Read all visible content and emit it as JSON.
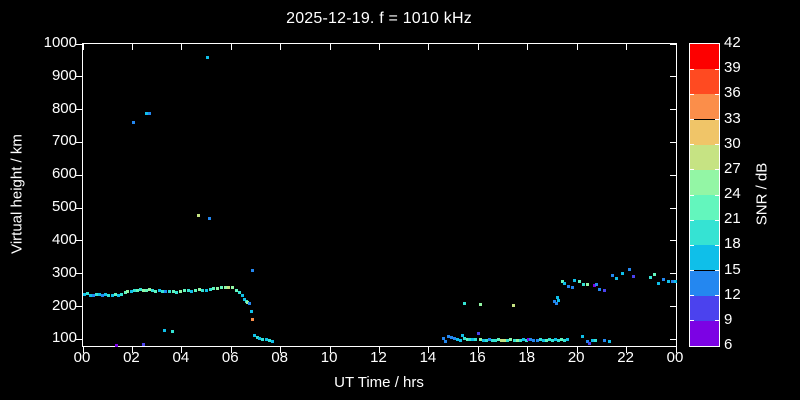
{
  "title": "2025-12-19. f = 1010 kHz",
  "axes": {
    "x": {
      "label": "UT Time / hrs",
      "min": 0,
      "max": 24,
      "tick_step_hours": 2,
      "tick_labels": [
        "00",
        "02",
        "04",
        "06",
        "08",
        "10",
        "12",
        "14",
        "16",
        "18",
        "20",
        "22",
        "00"
      ]
    },
    "y": {
      "label": "Virtual height / km",
      "min": 80,
      "max": 1000,
      "tick_values": [
        100,
        200,
        300,
        400,
        500,
        600,
        700,
        800,
        900,
        1000
      ]
    }
  },
  "colorbar": {
    "label": "SNR / dB",
    "tick_values": [
      6,
      9,
      12,
      15,
      18,
      21,
      24,
      27,
      30,
      33,
      36,
      39,
      42
    ],
    "segment_colors_bottom_to_top": [
      "#7c02e4",
      "#4b42ee",
      "#2487f0",
      "#0fbfe9",
      "#35e3d3",
      "#63f6bd",
      "#93f6a5",
      "#c6e383",
      "#f0c568",
      "#fb8e4a",
      "#ff4a21",
      "#fd0000"
    ]
  },
  "chart_data": {
    "type": "scatter",
    "title": "2025-12-19. f = 1010 kHz",
    "xlabel": "UT Time / hrs",
    "ylabel": "Virtual height / km",
    "xlim": [
      0,
      24
    ],
    "ylim": [
      80,
      1000
    ],
    "grid": false,
    "colorbar_label": "SNR / dB",
    "colorbar_range_db": [
      6,
      42
    ],
    "colorbar_step_db": 3,
    "points_format": [
      "ut_hours",
      "virtual_height_km",
      "snr_db"
    ],
    "points": [
      [
        0.05,
        237,
        16
      ],
      [
        0.18,
        240,
        19
      ],
      [
        0.3,
        235,
        16
      ],
      [
        0.42,
        233,
        13
      ],
      [
        0.55,
        238,
        19
      ],
      [
        0.68,
        236,
        16
      ],
      [
        0.8,
        234,
        13
      ],
      [
        0.92,
        237,
        16
      ],
      [
        1.05,
        235,
        19
      ],
      [
        1.18,
        233,
        16
      ],
      [
        1.3,
        236,
        22
      ],
      [
        1.42,
        234,
        16
      ],
      [
        1.55,
        237,
        19
      ],
      [
        1.7,
        242,
        22
      ],
      [
        1.82,
        245,
        25
      ],
      [
        1.95,
        247,
        16
      ],
      [
        2.08,
        248,
        19
      ],
      [
        2.2,
        250,
        22
      ],
      [
        2.32,
        252,
        19
      ],
      [
        2.45,
        250,
        25
      ],
      [
        2.58,
        248,
        22
      ],
      [
        2.7,
        251,
        25
      ],
      [
        2.82,
        249,
        19
      ],
      [
        2.95,
        247,
        22
      ],
      [
        3.08,
        248,
        16
      ],
      [
        3.2,
        246,
        19
      ],
      [
        3.35,
        247,
        13
      ],
      [
        3.5,
        245,
        19
      ],
      [
        3.65,
        246,
        22
      ],
      [
        3.8,
        244,
        19
      ],
      [
        3.95,
        246,
        25
      ],
      [
        4.1,
        248,
        22
      ],
      [
        4.25,
        250,
        19
      ],
      [
        4.4,
        247,
        16
      ],
      [
        4.55,
        249,
        22
      ],
      [
        4.7,
        251,
        25
      ],
      [
        4.85,
        248,
        19
      ],
      [
        5.0,
        250,
        16
      ],
      [
        5.15,
        252,
        19
      ],
      [
        5.3,
        254,
        22
      ],
      [
        5.45,
        256,
        25
      ],
      [
        5.6,
        257,
        22
      ],
      [
        5.75,
        258,
        25
      ],
      [
        5.9,
        259,
        28
      ],
      [
        6.05,
        257,
        25
      ],
      [
        6.2,
        250,
        22
      ],
      [
        6.35,
        242,
        19
      ],
      [
        6.45,
        234,
        16
      ],
      [
        6.55,
        223,
        16
      ],
      [
        6.6,
        216,
        19
      ],
      [
        6.65,
        211,
        25
      ],
      [
        6.72,
        208,
        13
      ],
      [
        6.8,
        185,
        16
      ],
      [
        6.88,
        162,
        34
      ],
      [
        6.95,
        111,
        16
      ],
      [
        7.05,
        107,
        19
      ],
      [
        7.15,
        104,
        16
      ],
      [
        7.28,
        101,
        19
      ],
      [
        7.42,
        100,
        16
      ],
      [
        7.55,
        97,
        19
      ],
      [
        7.68,
        94,
        16
      ],
      [
        1.37,
        81,
        7
      ],
      [
        2.45,
        85,
        10
      ],
      [
        3.28,
        128,
        16
      ],
      [
        3.62,
        125,
        19
      ],
      [
        2.06,
        760,
        13
      ],
      [
        2.55,
        787,
        16
      ],
      [
        2.7,
        787,
        13
      ],
      [
        5.05,
        958,
        16
      ],
      [
        4.67,
        477,
        28
      ],
      [
        5.13,
        467,
        13
      ],
      [
        6.85,
        309,
        13
      ],
      [
        14.58,
        104,
        13
      ],
      [
        14.68,
        94,
        13
      ],
      [
        14.8,
        108,
        13
      ],
      [
        14.92,
        106,
        13
      ],
      [
        15.04,
        104,
        13
      ],
      [
        15.16,
        101,
        16
      ],
      [
        15.28,
        98,
        16
      ],
      [
        15.35,
        111,
        16
      ],
      [
        15.45,
        103,
        19
      ],
      [
        15.55,
        100,
        22
      ],
      [
        15.65,
        99,
        19
      ],
      [
        15.78,
        100,
        16
      ],
      [
        15.9,
        100,
        19
      ],
      [
        16.0,
        118,
        10
      ],
      [
        16.1,
        100,
        25
      ],
      [
        16.22,
        98,
        16
      ],
      [
        16.34,
        98,
        19
      ],
      [
        16.46,
        100,
        13
      ],
      [
        16.58,
        98,
        19
      ],
      [
        16.7,
        98,
        19
      ],
      [
        16.82,
        99,
        22
      ],
      [
        16.95,
        98,
        28
      ],
      [
        17.07,
        98,
        28
      ],
      [
        17.2,
        98,
        19
      ],
      [
        17.32,
        99,
        25
      ],
      [
        17.45,
        98,
        19
      ],
      [
        17.57,
        98,
        25
      ],
      [
        17.7,
        98,
        19
      ],
      [
        17.82,
        99,
        16
      ],
      [
        17.95,
        98,
        19
      ],
      [
        18.05,
        100,
        7
      ],
      [
        18.12,
        99,
        13
      ],
      [
        18.25,
        98,
        13
      ],
      [
        18.38,
        98,
        13
      ],
      [
        18.5,
        99,
        19
      ],
      [
        18.62,
        98,
        16
      ],
      [
        18.75,
        98,
        22
      ],
      [
        18.88,
        99,
        19
      ],
      [
        19.0,
        98,
        19
      ],
      [
        19.12,
        99,
        16
      ],
      [
        19.25,
        98,
        19
      ],
      [
        19.38,
        99,
        22
      ],
      [
        19.5,
        98,
        19
      ],
      [
        19.62,
        100,
        16
      ],
      [
        15.45,
        208,
        19
      ],
      [
        16.1,
        205,
        25
      ],
      [
        17.42,
        203,
        28
      ],
      [
        19.17,
        210,
        13
      ],
      [
        19.26,
        218,
        16
      ],
      [
        19.1,
        216,
        13
      ],
      [
        19.2,
        228,
        16
      ],
      [
        19.4,
        277,
        22
      ],
      [
        19.5,
        269,
        16
      ],
      [
        19.65,
        262,
        13
      ],
      [
        19.8,
        257,
        13
      ],
      [
        19.9,
        279,
        16
      ],
      [
        20.1,
        275,
        22
      ],
      [
        20.25,
        267,
        19
      ],
      [
        20.4,
        267,
        25
      ],
      [
        20.7,
        264,
        7
      ],
      [
        20.8,
        266,
        13
      ],
      [
        20.9,
        252,
        13
      ],
      [
        21.1,
        249,
        10
      ],
      [
        21.45,
        295,
        13
      ],
      [
        21.6,
        285,
        16
      ],
      [
        21.85,
        302,
        16
      ],
      [
        22.1,
        312,
        13
      ],
      [
        22.3,
        292,
        10
      ],
      [
        22.95,
        289,
        19
      ],
      [
        23.15,
        297,
        22
      ],
      [
        23.3,
        269,
        16
      ],
      [
        23.5,
        282,
        13
      ],
      [
        23.7,
        277,
        16
      ],
      [
        23.85,
        275,
        13
      ],
      [
        23.97,
        277,
        16
      ],
      [
        20.2,
        109,
        16
      ],
      [
        20.4,
        93,
        13
      ],
      [
        20.5,
        89,
        10
      ],
      [
        20.62,
        96,
        16
      ],
      [
        20.75,
        96,
        19
      ],
      [
        21.1,
        96,
        13
      ],
      [
        21.3,
        94,
        16
      ]
    ]
  }
}
